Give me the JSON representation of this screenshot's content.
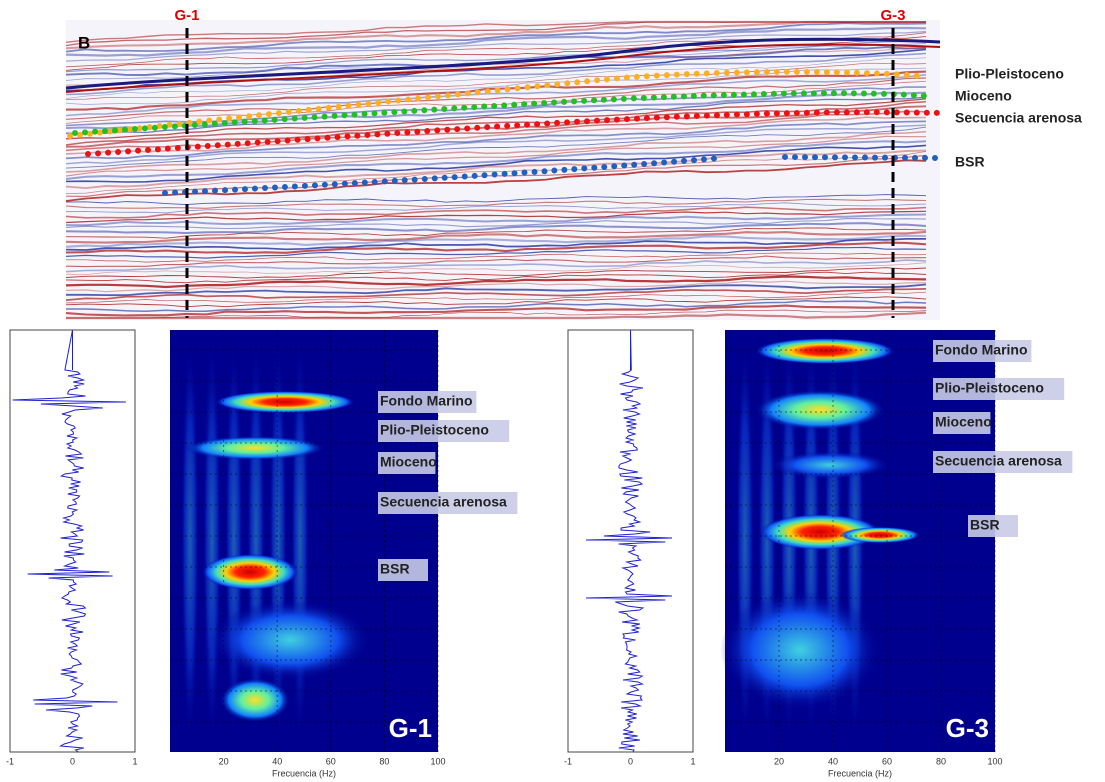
{
  "section": {
    "panel_label": "B",
    "wells": [
      "G-1",
      "G-3"
    ],
    "horizons": [
      "Plio-Pleistoceno",
      "Mioceno",
      "Secuencia arenosa",
      "BSR"
    ]
  },
  "panels": [
    {
      "well": "G-1",
      "trace_ticks": [
        -1,
        0,
        1
      ],
      "freq_ticks": [
        20,
        40,
        60,
        80,
        100
      ],
      "freq_label": "Frecuencia (Hz)",
      "labels": [
        "Fondo Marino",
        "Plio-Pleistoceno",
        "Mioceno",
        "Secuencia arenosa",
        "BSR"
      ]
    },
    {
      "well": "G-3",
      "trace_ticks": [
        -1,
        0,
        1
      ],
      "freq_ticks": [
        20,
        40,
        60,
        80,
        100
      ],
      "freq_label": "Frecuencia (Hz)",
      "labels": [
        "Fondo Marino",
        "Plio-Pleistoceno",
        "Mioceno",
        "Secuencia arenosa",
        "BSR"
      ]
    }
  ]
}
